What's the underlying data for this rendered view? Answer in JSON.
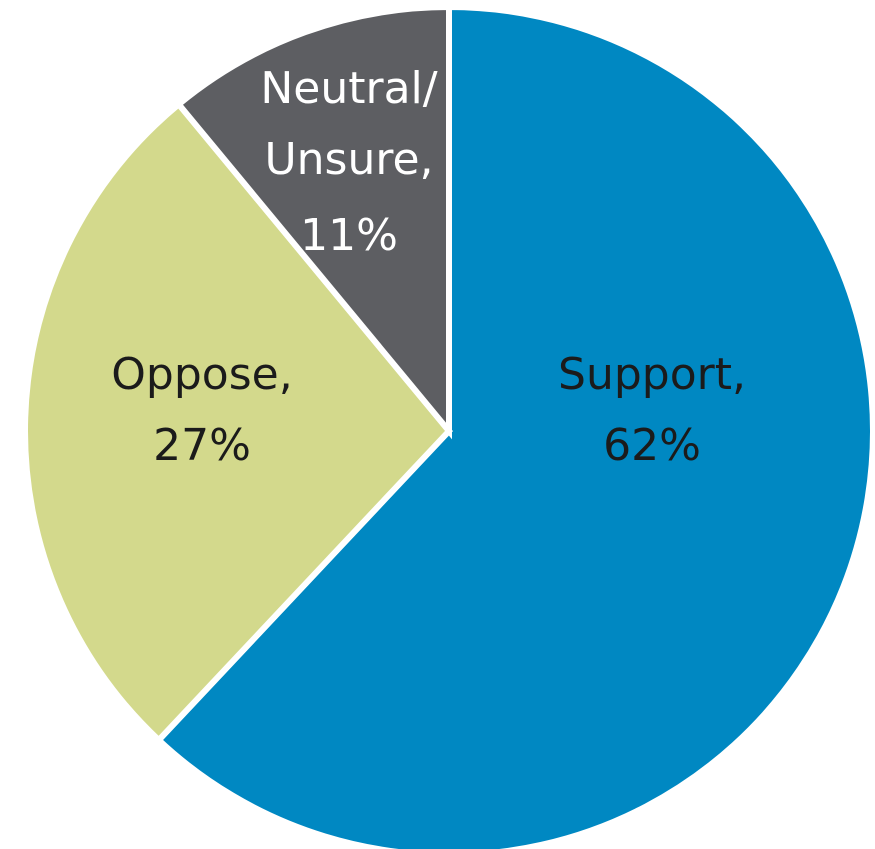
{
  "chart_data": {
    "type": "pie",
    "title": "",
    "start_angle": "12 o'clock",
    "direction": "clockwise",
    "slices": [
      {
        "category": "Support",
        "value": 62,
        "label_line1": "Support,",
        "label_line2": "62%",
        "color": "#0088c2",
        "label_color": "#1b1b1b"
      },
      {
        "category": "Oppose",
        "value": 27,
        "label_line1": "Oppose,",
        "label_line2": "27%",
        "color": "#d3d98c",
        "label_color": "#1b1b1b"
      },
      {
        "category": "Neutral/ Unsure",
        "value": 11,
        "label_line1": "Neutral/",
        "label_line2": "Unsure,",
        "label_line3": "11%",
        "color": "#5d5e62",
        "label_color": "#ffffff"
      }
    ]
  }
}
